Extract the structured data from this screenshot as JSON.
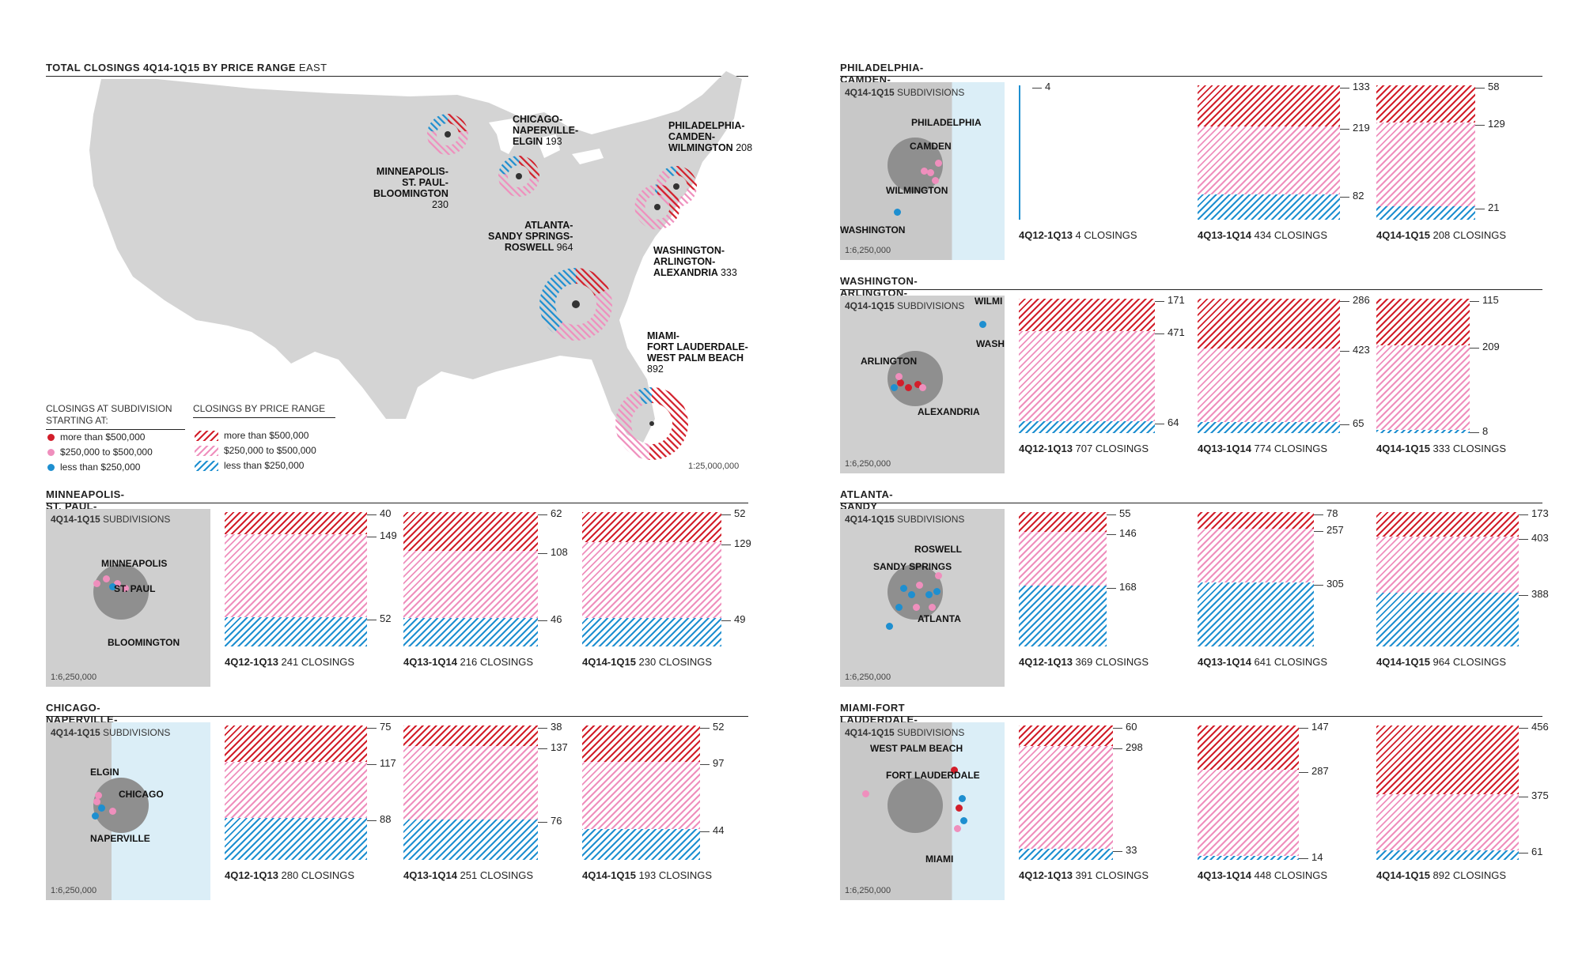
{
  "colors": {
    "red": "#d21e2a",
    "pink": "#ef8fbd",
    "blue": "#1e8fd0",
    "land": "#d4d4d4",
    "water": "#dbeef7"
  },
  "main_map": {
    "title_bold": "TOTAL CLOSINGS 4Q14-1Q15 BY PRICE RANGE",
    "title_region": "EAST",
    "scale": "1:25,000,000",
    "legend": {
      "dots_title_1": "CLOSINGS AT SUBDIVISION",
      "dots_title_2": "STARTING AT:",
      "dots": [
        {
          "label": "more than $500,000",
          "color": "#d21e2a"
        },
        {
          "label": "$250,000 to $500,000",
          "color": "#ef8fbd"
        },
        {
          "label": "less than $250,000",
          "color": "#1e8fd0"
        }
      ],
      "bands_title": "CLOSINGS BY PRICE RANGE",
      "bands": [
        {
          "label": "more than $500,000"
        },
        {
          "label": "$250,000 to $500,000"
        },
        {
          "label": "less than $250,000"
        }
      ]
    },
    "cities": [
      {
        "lines": [
          "MINNEAPOLIS-",
          "ST. PAUL-",
          "BLOOMINGTON"
        ],
        "count": "230"
      },
      {
        "lines": [
          "CHICAGO-",
          "NAPERVILLE-",
          "ELGIN"
        ],
        "count": "193"
      },
      {
        "lines": [
          "PHILADELPHIA-",
          "CAMDEN-",
          "WILMINGTON"
        ],
        "count": "208"
      },
      {
        "lines": [
          "ATLANTA-",
          "SANDY SPRINGS-",
          "ROSWELL"
        ],
        "count": "964"
      },
      {
        "lines": [
          "WASHINGTON-",
          "ARLINGTON-",
          "ALEXANDRIA"
        ],
        "count": "333"
      },
      {
        "lines": [
          "MIAMI-",
          "FORT LAUDERDALE-",
          "WEST PALM BEACH"
        ],
        "count": "892"
      }
    ]
  },
  "panel_common": {
    "hdr_bold": "4Q14-1Q15",
    "hdr_rest": "SUBDIVISIONS",
    "closings": "CLOSINGS"
  },
  "chart_data": [
    {
      "type": "bar",
      "title": "MINNEAPOLIS-ST. PAUL-BLOOMINGTON",
      "scale": "1:6,250,000",
      "labels": [
        "MINNEAPOLIS",
        "ST. PAUL",
        "BLOOMINGTON"
      ],
      "periods": [
        {
          "name": "4Q12-1Q13",
          "total": "241",
          "values": [
            40,
            149,
            52
          ]
        },
        {
          "name": "4Q13-1Q14",
          "total": "216",
          "values": [
            62,
            108,
            46
          ]
        },
        {
          "name": "4Q14-1Q15",
          "total": "230",
          "values": [
            52,
            129,
            49
          ]
        }
      ]
    },
    {
      "type": "bar",
      "title": "CHICAGO-NAPERVILLE-ELGIN",
      "scale": "1:6,250,000",
      "labels": [
        "ELGIN",
        "CHICAGO",
        "NAPERVILLE"
      ],
      "periods": [
        {
          "name": "4Q12-1Q13",
          "total": "280",
          "values": [
            75,
            117,
            88
          ]
        },
        {
          "name": "4Q13-1Q14",
          "total": "251",
          "values": [
            38,
            137,
            76
          ]
        },
        {
          "name": "4Q14-1Q15",
          "total": "193",
          "values": [
            52,
            97,
            44
          ]
        }
      ]
    },
    {
      "type": "bar",
      "title": "PHILADELPHIA-CAMDEN-WILMINGTON",
      "scale": "1:6,250,000",
      "labels": [
        "PHILADELPHIA",
        "CAMDEN",
        "WILMINGTON",
        "WASHINGTON"
      ],
      "periods": [
        {
          "name": "4Q12-1Q13",
          "total": "4",
          "values": [
            0,
            0,
            4
          ]
        },
        {
          "name": "4Q13-1Q14",
          "total": "434",
          "values": [
            133,
            219,
            82
          ]
        },
        {
          "name": "4Q14-1Q15",
          "total": "208",
          "values": [
            58,
            129,
            21
          ]
        }
      ]
    },
    {
      "type": "bar",
      "title": "WASHINGTON-ARLINGTON-ALEXANDRIA",
      "scale": "1:6,250,000",
      "labels": [
        "WASHINGTON",
        "ARLINGTON",
        "ALEXANDRIA",
        "WILMI"
      ],
      "periods": [
        {
          "name": "4Q12-1Q13",
          "total": "707",
          "values": [
            171,
            471,
            64
          ]
        },
        {
          "name": "4Q13-1Q14",
          "total": "774",
          "values": [
            286,
            423,
            65
          ]
        },
        {
          "name": "4Q14-1Q15",
          "total": "333",
          "values": [
            115,
            209,
            8
          ]
        }
      ]
    },
    {
      "type": "bar",
      "title": "ATLANTA-SANDY SPRINGS-ROSWELL",
      "scale": "1:6,250,000",
      "labels": [
        "ROSWELL",
        "SANDY SPRINGS",
        "ATLANTA"
      ],
      "periods": [
        {
          "name": "4Q12-1Q13",
          "total": "369",
          "values": [
            55,
            146,
            168
          ]
        },
        {
          "name": "4Q13-1Q14",
          "total": "641",
          "values": [
            78,
            257,
            305
          ]
        },
        {
          "name": "4Q14-1Q15",
          "total": "964",
          "values": [
            173,
            403,
            388
          ]
        }
      ]
    },
    {
      "type": "bar",
      "title": "MIAMI-FORT LAUDERDALE-WEST PALM BEACH",
      "scale": "1:6,250,000",
      "labels": [
        "WEST PALM BEACH",
        "FORT LAUDERDALE",
        "MIAMI"
      ],
      "periods": [
        {
          "name": "4Q12-1Q13",
          "total": "391",
          "values": [
            60,
            298,
            33
          ]
        },
        {
          "name": "4Q13-1Q14",
          "total": "448",
          "values": [
            147,
            287,
            14
          ]
        },
        {
          "name": "4Q14-1Q15",
          "total": "892",
          "values": [
            456,
            375,
            61
          ]
        }
      ]
    }
  ]
}
